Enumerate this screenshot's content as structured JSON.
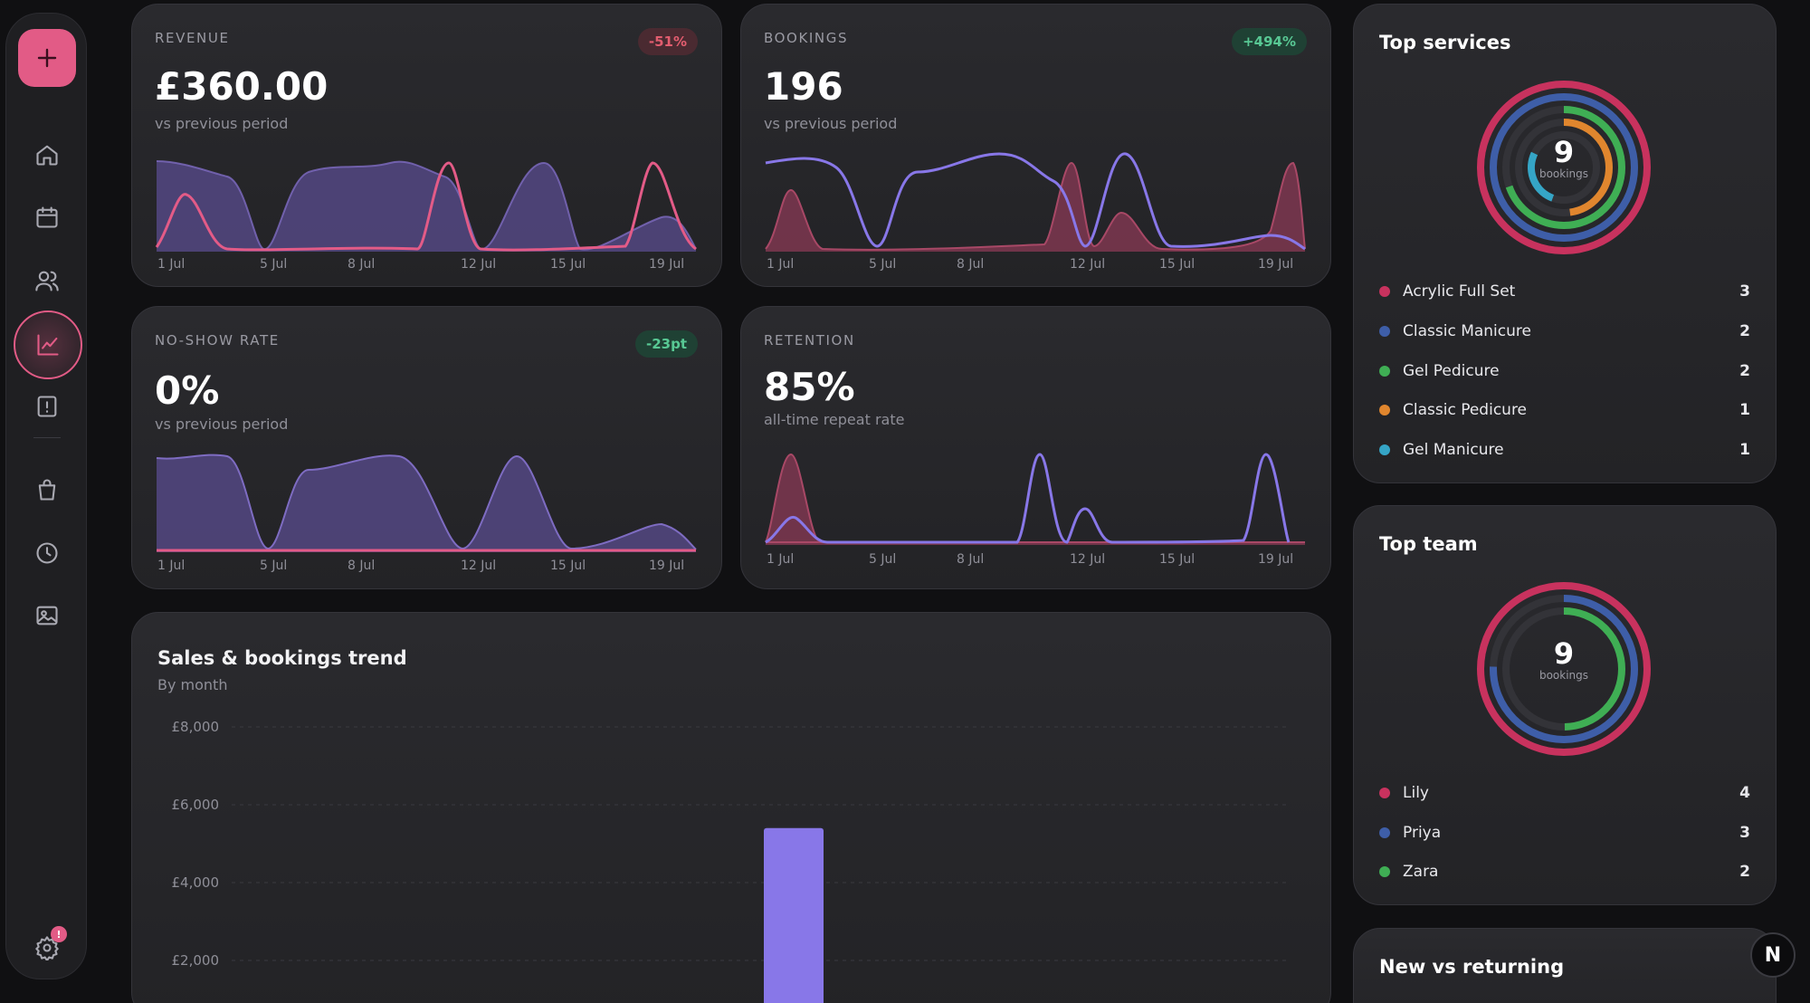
{
  "sidebar": {
    "settings_badge": "!"
  },
  "kpis": [
    {
      "label": "REVENUE",
      "value": "£360.00",
      "sub": "vs previous period",
      "delta": "-51%",
      "delta_kind": "neg"
    },
    {
      "label": "BOOKINGS",
      "value": "196",
      "sub": "vs previous period",
      "delta": "+494%",
      "delta_kind": "pos"
    },
    {
      "label": "NO-SHOW RATE",
      "value": "0%",
      "sub": "vs previous period",
      "delta": "-23pt",
      "delta_kind": "pos"
    },
    {
      "label": "RETENTION",
      "value": "85%",
      "sub": "all-time repeat rate"
    }
  ],
  "spark_xlabels": [
    "1 Jul",
    "5 Jul",
    "8 Jul",
    "12 Jul",
    "15 Jul",
    "19 Jul"
  ],
  "top_services": {
    "title": "Top services",
    "total": "9",
    "total_label": "bookings",
    "items": [
      {
        "name": "Acrylic Full Set",
        "count": "3",
        "color": "#c8325e"
      },
      {
        "name": "Classic Manicure",
        "count": "2",
        "color": "#3e5ea8"
      },
      {
        "name": "Gel Pedicure",
        "count": "2",
        "color": "#3fae54"
      },
      {
        "name": "Classic Pedicure",
        "count": "1",
        "color": "#e0862e"
      },
      {
        "name": "Gel Manicure",
        "count": "1",
        "color": "#35a5c6"
      }
    ]
  },
  "top_team": {
    "title": "Top team",
    "total": "9",
    "total_label": "bookings",
    "items": [
      {
        "name": "Lily",
        "count": "4",
        "color": "#c8325e"
      },
      {
        "name": "Priya",
        "count": "3",
        "color": "#3e5ea8"
      },
      {
        "name": "Zara",
        "count": "2",
        "color": "#3fae54"
      }
    ]
  },
  "new_vs_returning": {
    "title": "New vs returning"
  },
  "trend": {
    "title": "Sales & bookings trend",
    "subtitle": "By month"
  },
  "chart_data": {
    "type": "bar",
    "title": "Sales & bookings trend",
    "subtitle": "By month",
    "y_tick_labels": [
      "£8,000",
      "£6,000",
      "£4,000",
      "£2,000"
    ],
    "y_ticks": [
      8000,
      6000,
      4000,
      2000
    ],
    "ylim": [
      0,
      8000
    ],
    "bars": [
      {
        "value": 5400,
        "color": "#8877e8"
      }
    ],
    "grid": true
  },
  "fab_label": "N"
}
